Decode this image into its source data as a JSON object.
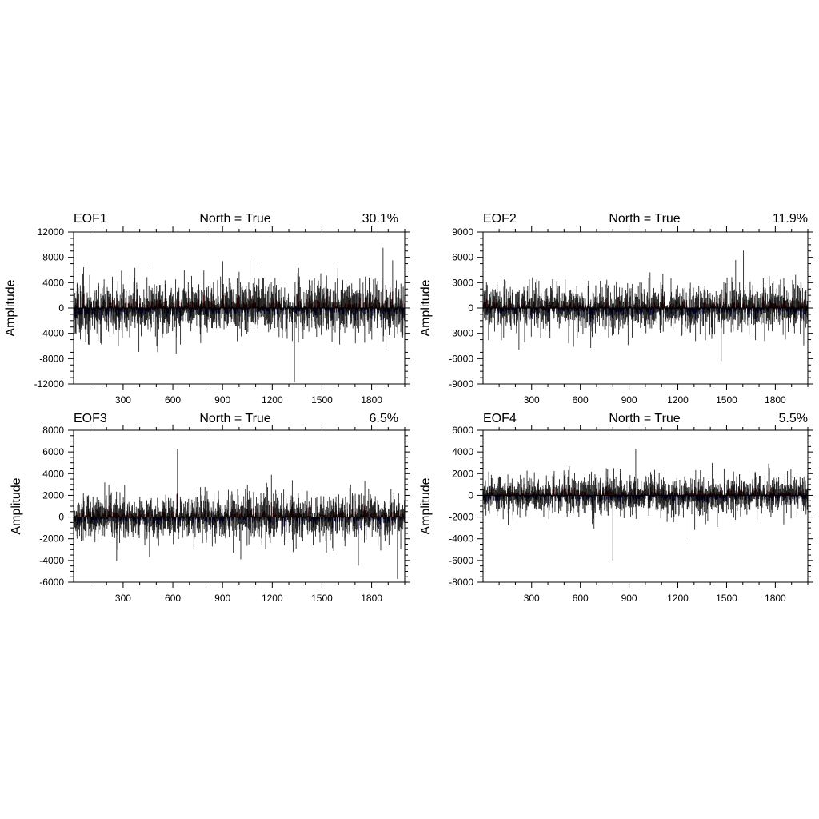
{
  "chart_data": [
    {
      "type": "bar",
      "panel": "EOF1",
      "left_title": "EOF1",
      "center_title": "North = True",
      "right_title": "30.1%",
      "ylabel": "Amplitude",
      "xlim": [
        1,
        2000
      ],
      "ylim": [
        -12000,
        12000
      ],
      "x_ticks": [
        300,
        600,
        900,
        1200,
        1500,
        1800
      ],
      "x_tick_labels": [
        "300",
        "600",
        "900",
        "1200",
        "1500",
        "1800"
      ],
      "y_ticks": [
        -12000,
        -8000,
        -4000,
        0,
        4000,
        8000,
        12000
      ],
      "y_tick_labels": [
        "-12000",
        "-8000",
        "-4000",
        "0",
        "4000",
        "8000",
        "12000"
      ],
      "y_minor_step": 1000,
      "n_points": 2000,
      "noise_scale": 2700,
      "max_value": 9500,
      "min_value": -11700,
      "seed": 11,
      "positive_color": "#8b0000",
      "negative_color": "#00008b",
      "line_color": "#000000"
    },
    {
      "type": "bar",
      "panel": "EOF2",
      "left_title": "EOF2",
      "center_title": "North = True",
      "right_title": "11.9%",
      "ylabel": "Amplitude",
      "xlim": [
        1,
        2000
      ],
      "ylim": [
        -9000,
        9000
      ],
      "x_ticks": [
        300,
        600,
        900,
        1200,
        1500,
        1800
      ],
      "x_tick_labels": [
        "300",
        "600",
        "900",
        "1200",
        "1500",
        "1800"
      ],
      "y_ticks": [
        -9000,
        -6000,
        -3000,
        0,
        3000,
        6000,
        9000
      ],
      "y_tick_labels": [
        "-9000",
        "-6000",
        "-3000",
        "0",
        "3000",
        "6000",
        "9000"
      ],
      "y_minor_step": 750,
      "n_points": 2000,
      "noise_scale": 1700,
      "max_value": 6800,
      "min_value": -6300,
      "seed": 23,
      "positive_color": "#8b0000",
      "negative_color": "#00008b",
      "line_color": "#000000"
    },
    {
      "type": "bar",
      "panel": "EOF3",
      "left_title": "EOF3",
      "center_title": "North = True",
      "right_title": "6.5%",
      "ylabel": "Amplitude",
      "xlim": [
        1,
        2000
      ],
      "ylim": [
        -6000,
        8000
      ],
      "x_ticks": [
        300,
        600,
        900,
        1200,
        1500,
        1800
      ],
      "x_tick_labels": [
        "300",
        "600",
        "900",
        "1200",
        "1500",
        "1800"
      ],
      "y_ticks": [
        -6000,
        -4000,
        -2000,
        0,
        2000,
        4000,
        6000,
        8000
      ],
      "y_tick_labels": [
        "-6000",
        "-4000",
        "-2000",
        "0",
        "2000",
        "4000",
        "6000",
        "8000"
      ],
      "y_minor_step": 500,
      "n_points": 2000,
      "noise_scale": 1350,
      "max_value": 6300,
      "min_value": -5700,
      "seed": 37,
      "positive_color": "#8b0000",
      "negative_color": "#00008b",
      "line_color": "#000000"
    },
    {
      "type": "bar",
      "panel": "EOF4",
      "left_title": "EOF4",
      "center_title": "North = True",
      "right_title": "5.5%",
      "ylabel": "Amplitude",
      "xlim": [
        1,
        2000
      ],
      "ylim": [
        -8000,
        6000
      ],
      "x_ticks": [
        300,
        600,
        900,
        1200,
        1500,
        1800
      ],
      "x_tick_labels": [
        "300",
        "600",
        "900",
        "1200",
        "1500",
        "1800"
      ],
      "y_ticks": [
        -8000,
        -6000,
        -4000,
        -2000,
        0,
        2000,
        4000,
        6000
      ],
      "y_tick_labels": [
        "-8000",
        "-6000",
        "-4000",
        "-2000",
        "0",
        "2000",
        "4000",
        "6000"
      ],
      "y_minor_step": 500,
      "n_points": 2000,
      "noise_scale": 1150,
      "max_value": 4300,
      "min_value": -6000,
      "seed": 53,
      "positive_color": "#8b0000",
      "negative_color": "#00008b",
      "line_color": "#000000"
    }
  ]
}
